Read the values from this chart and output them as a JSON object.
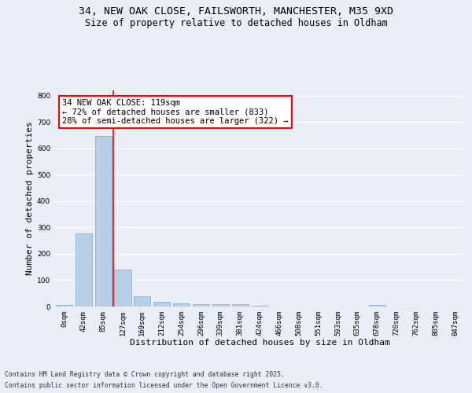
{
  "title_line1": "34, NEW OAK CLOSE, FAILSWORTH, MANCHESTER, M35 9XD",
  "title_line2": "Size of property relative to detached houses in Oldham",
  "xlabel": "Distribution of detached houses by size in Oldham",
  "ylabel": "Number of detached properties",
  "footer_line1": "Contains HM Land Registry data © Crown copyright and database right 2025.",
  "footer_line2": "Contains public sector information licensed under the Open Government Licence v3.0.",
  "bar_labels": [
    "0sqm",
    "42sqm",
    "85sqm",
    "127sqm",
    "169sqm",
    "212sqm",
    "254sqm",
    "296sqm",
    "339sqm",
    "381sqm",
    "424sqm",
    "466sqm",
    "508sqm",
    "551sqm",
    "593sqm",
    "635sqm",
    "678sqm",
    "720sqm",
    "762sqm",
    "805sqm",
    "847sqm"
  ],
  "bar_values": [
    7,
    277,
    648,
    140,
    38,
    18,
    13,
    10,
    10,
    8,
    2,
    0,
    0,
    0,
    0,
    0,
    5,
    0,
    0,
    0,
    0
  ],
  "bar_color": "#b8cfe8",
  "bar_edgecolor": "#6fa8d4",
  "vline_x": 2.5,
  "vline_color": "red",
  "annotation_text": "34 NEW OAK CLOSE: 119sqm\n← 72% of detached houses are smaller (833)\n28% of semi-detached houses are larger (322) →",
  "annotation_box_color": "white",
  "annotation_box_edgecolor": "red",
  "ylim": [
    0,
    820
  ],
  "yticks": [
    0,
    100,
    200,
    300,
    400,
    500,
    600,
    700,
    800
  ],
  "bg_color": "#eaeff7",
  "plot_bg_color": "#eaeff7",
  "grid_color": "white",
  "title_fontsize": 9.5,
  "subtitle_fontsize": 8.5,
  "axis_label_fontsize": 8,
  "tick_fontsize": 6.5,
  "annotation_fontsize": 7.5,
  "footer_fontsize": 5.8
}
